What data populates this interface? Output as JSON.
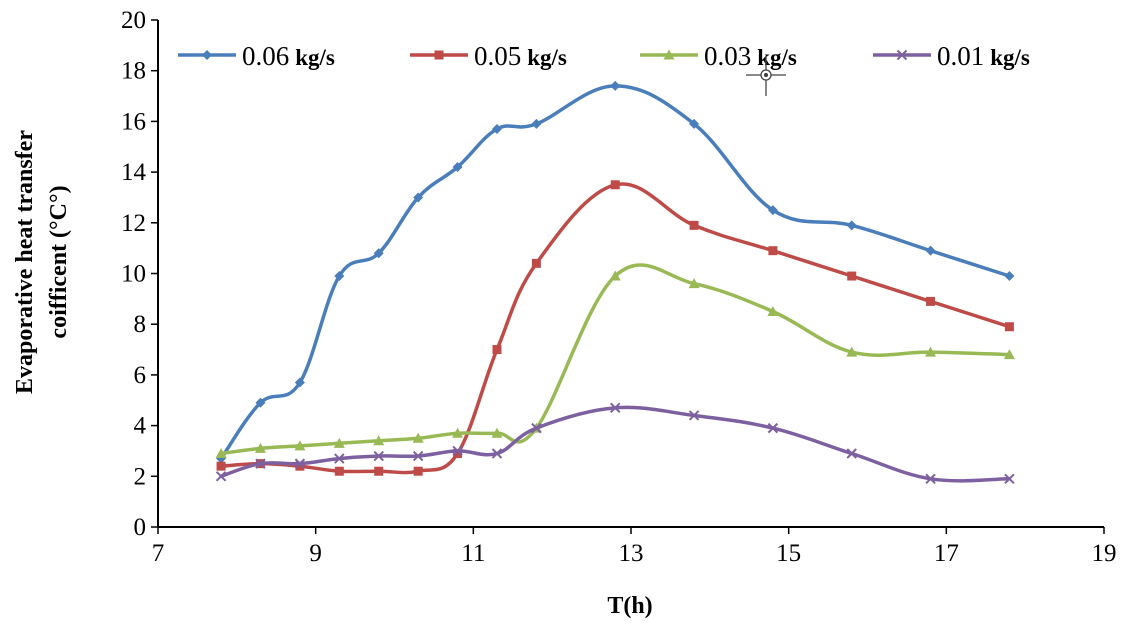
{
  "chart_data": {
    "type": "line",
    "xlabel": "T(h)",
    "ylabel_lines": [
      "Evaporative heat transfer",
      "coifficent  (°C°)"
    ],
    "xlim": [
      7,
      19
    ],
    "ylim": [
      0,
      20
    ],
    "xticks": [
      7,
      9,
      11,
      13,
      15,
      17,
      19
    ],
    "yticks": [
      0,
      2,
      4,
      6,
      8,
      10,
      12,
      14,
      16,
      18,
      20
    ],
    "grid": false,
    "legend_position": "top",
    "smooth": true,
    "series": [
      {
        "name": "0.06",
        "unit": "kg/s",
        "color": "#4a7ebb",
        "marker": "diamond",
        "x": [
          7.8,
          8.3,
          8.8,
          9.3,
          9.8,
          10.3,
          10.8,
          11.3,
          11.8,
          12.8,
          13.8,
          14.8,
          15.8,
          16.8,
          17.8
        ],
        "y": [
          2.7,
          4.9,
          5.7,
          9.9,
          10.8,
          13.0,
          14.2,
          15.7,
          15.9,
          17.4,
          15.9,
          12.5,
          11.9,
          10.9,
          9.9
        ]
      },
      {
        "name": "0.05",
        "unit": "kg/s",
        "color": "#be4b48",
        "marker": "square",
        "x": [
          7.8,
          8.3,
          8.8,
          9.3,
          9.8,
          10.3,
          10.8,
          11.3,
          11.8,
          12.8,
          13.8,
          14.8,
          15.8,
          16.8,
          17.8
        ],
        "y": [
          2.4,
          2.5,
          2.4,
          2.2,
          2.2,
          2.2,
          2.9,
          7.0,
          10.4,
          13.5,
          11.9,
          10.9,
          9.9,
          8.9,
          7.9
        ]
      },
      {
        "name": "0.03",
        "unit": "kg/s",
        "color": "#98b954",
        "marker": "triangle",
        "x": [
          7.8,
          8.3,
          8.8,
          9.3,
          9.8,
          10.3,
          10.8,
          11.3,
          11.8,
          12.8,
          13.8,
          14.8,
          15.8,
          16.8,
          17.8
        ],
        "y": [
          2.9,
          3.1,
          3.2,
          3.3,
          3.4,
          3.5,
          3.7,
          3.7,
          3.9,
          9.9,
          9.6,
          8.5,
          6.9,
          6.9,
          6.8
        ]
      },
      {
        "name": "0.01",
        "unit": "kg/s",
        "color": "#7d60a0",
        "marker": "x",
        "x": [
          7.8,
          8.3,
          8.8,
          9.3,
          9.8,
          10.3,
          10.8,
          11.3,
          11.8,
          12.8,
          13.8,
          14.8,
          15.8,
          16.8,
          17.8
        ],
        "y": [
          2.0,
          2.5,
          2.5,
          2.7,
          2.8,
          2.8,
          3.0,
          2.9,
          3.9,
          4.7,
          4.4,
          3.9,
          2.9,
          1.9,
          1.9
        ]
      }
    ]
  }
}
